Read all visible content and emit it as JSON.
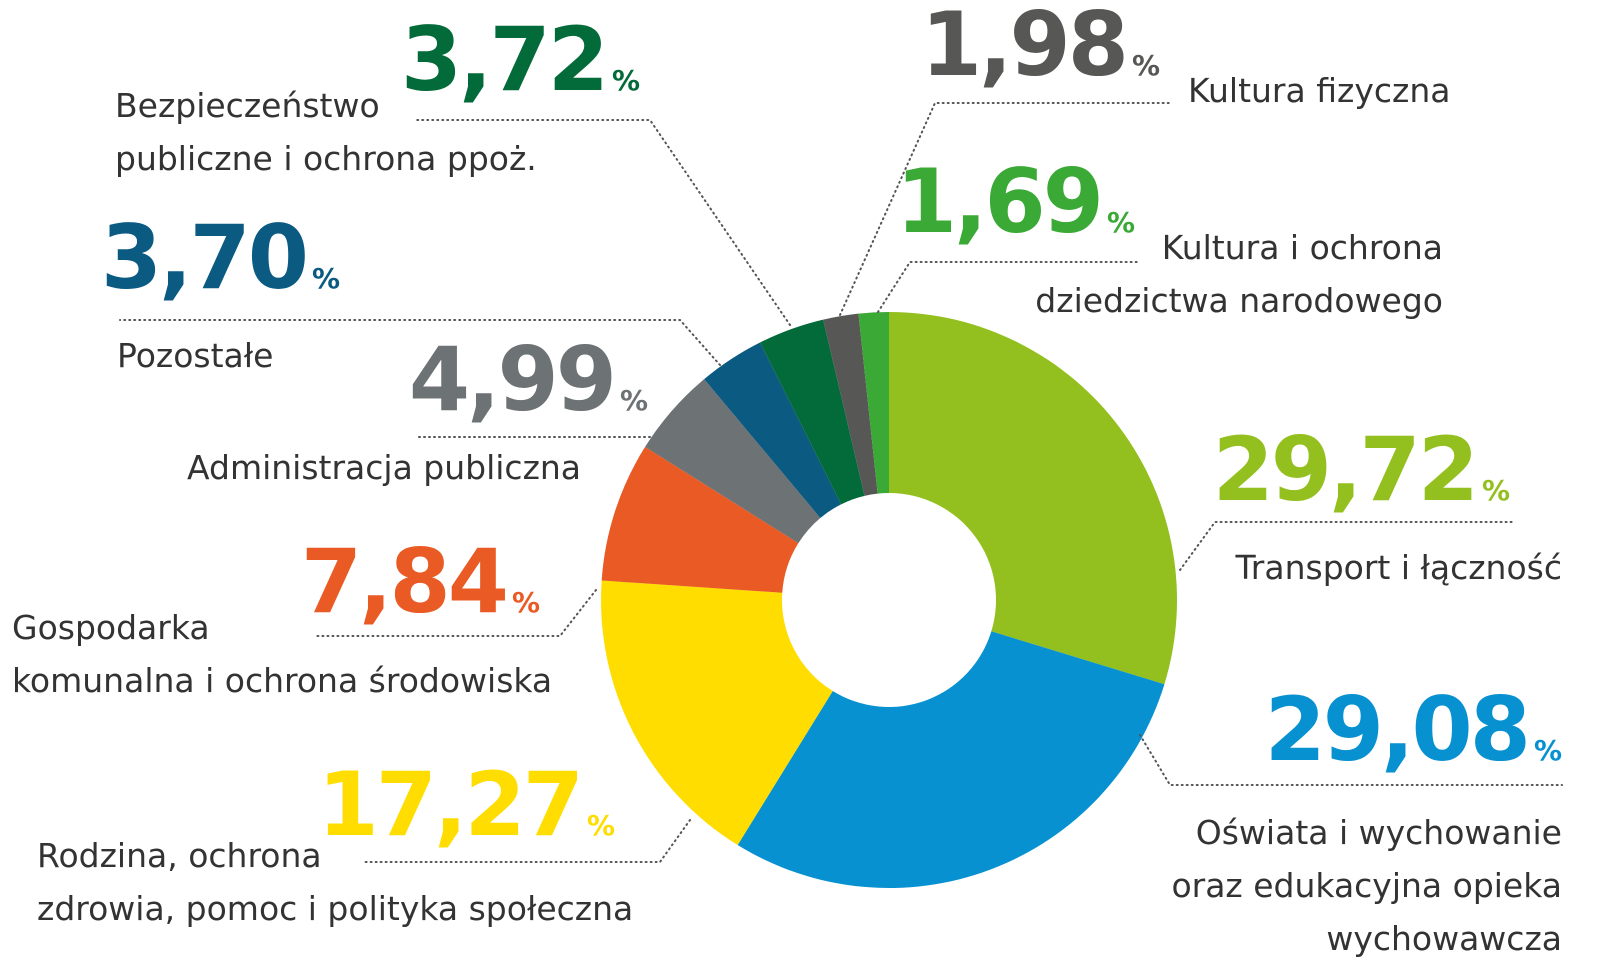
{
  "chart_data": {
    "type": "donut",
    "unit": "%",
    "categories": [
      [
        "Transport i łączność"
      ],
      [
        "Oświata i wychowanie",
        "oraz edukacyjna opieka",
        "wychowawcza"
      ],
      [
        "Rodzina, ochrona",
        "zdrowia, pomoc i polityka społeczna"
      ],
      [
        "Gospodarka",
        "komunalna i ochrona środowiska"
      ],
      [
        "Administracja publiczna"
      ],
      [
        "Pozostałe"
      ],
      [
        "Bezpieczeństwo",
        "publiczne i ochrona ppoż."
      ],
      [
        "Kultura fizyczna"
      ],
      [
        "Kultura i ochrona",
        "dziedzictwa narodowego"
      ]
    ],
    "values": [
      29.72,
      29.08,
      17.27,
      7.84,
      4.99,
      3.7,
      3.72,
      1.98,
      1.69
    ],
    "value_labels": [
      "29,72",
      "29,08",
      "17,27",
      "7,84",
      "4,99",
      "3,70",
      "3,72",
      "1,98",
      "1,69"
    ],
    "colors": [
      "#93c01f",
      "#0891d1",
      "#ffdd00",
      "#e95a24",
      "#6d7275",
      "#0a5a82",
      "#036a39",
      "#575756",
      "#3ba935"
    ]
  }
}
